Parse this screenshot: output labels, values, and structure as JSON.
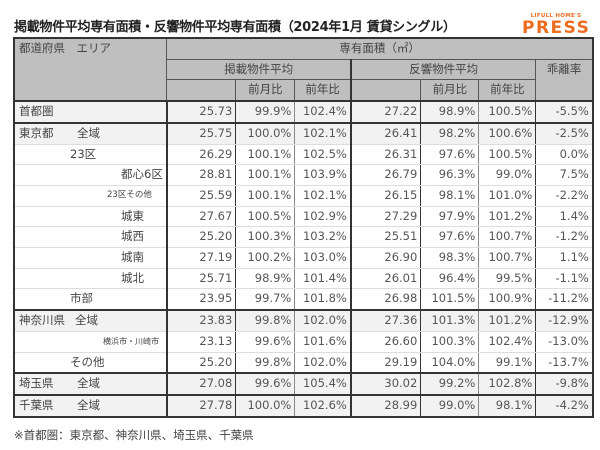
{
  "title": "掲載物件平均専有面積・反響物件平均専有面積（2024年1月 賃貸シングル）",
  "logo": {
    "small": "LIFULL HOME'S",
    "big": "PRESS",
    "color": "#ec6d20"
  },
  "header": {
    "area": "都道府県　エリア",
    "group": "専有面積（㎡）",
    "listed": "掲載物件平均",
    "response": "反響物件平均",
    "divergence": "乖離率",
    "mom": "前月比",
    "yoy": "前年比"
  },
  "rows": [
    {
      "pref": "首都圏",
      "area": "",
      "listed": "25.73",
      "l_mom": "99.9%",
      "l_yoy": "102.4%",
      "resp": "27.22",
      "r_mom": "98.9%",
      "r_yoy": "100.5%",
      "div": "-5.5%"
    },
    {
      "pref": "東京都",
      "area": "全域",
      "listed": "25.75",
      "l_mom": "100.0%",
      "l_yoy": "102.1%",
      "resp": "26.41",
      "r_mom": "98.2%",
      "r_yoy": "100.6%",
      "div": "-2.5%"
    },
    {
      "pref": "",
      "area": "23区",
      "listed": "26.29",
      "l_mom": "100.1%",
      "l_yoy": "102.5%",
      "resp": "26.31",
      "r_mom": "97.6%",
      "r_yoy": "100.5%",
      "div": "0.0%"
    },
    {
      "pref": "",
      "area": "都心6区",
      "listed": "28.81",
      "l_mom": "100.1%",
      "l_yoy": "103.9%",
      "resp": "26.79",
      "r_mom": "96.3%",
      "r_yoy": "99.0%",
      "div": "7.5%"
    },
    {
      "pref": "",
      "area": "23区その他",
      "listed": "25.59",
      "l_mom": "100.1%",
      "l_yoy": "102.1%",
      "resp": "26.15",
      "r_mom": "98.1%",
      "r_yoy": "101.0%",
      "div": "-2.2%"
    },
    {
      "pref": "",
      "area": "城東",
      "listed": "27.67",
      "l_mom": "100.5%",
      "l_yoy": "102.9%",
      "resp": "27.29",
      "r_mom": "97.9%",
      "r_yoy": "101.2%",
      "div": "1.4%"
    },
    {
      "pref": "",
      "area": "城西",
      "listed": "25.20",
      "l_mom": "100.3%",
      "l_yoy": "103.2%",
      "resp": "25.51",
      "r_mom": "97.6%",
      "r_yoy": "100.7%",
      "div": "-1.2%"
    },
    {
      "pref": "",
      "area": "城南",
      "listed": "27.19",
      "l_mom": "100.2%",
      "l_yoy": "103.0%",
      "resp": "26.90",
      "r_mom": "98.3%",
      "r_yoy": "100.7%",
      "div": "1.1%"
    },
    {
      "pref": "",
      "area": "城北",
      "listed": "25.71",
      "l_mom": "98.9%",
      "l_yoy": "101.4%",
      "resp": "26.01",
      "r_mom": "96.4%",
      "r_yoy": "99.5%",
      "div": "-1.1%"
    },
    {
      "pref": "",
      "area": "市部",
      "listed": "23.95",
      "l_mom": "99.7%",
      "l_yoy": "101.8%",
      "resp": "26.98",
      "r_mom": "101.5%",
      "r_yoy": "100.9%",
      "div": "-11.2%"
    },
    {
      "pref": "神奈川県",
      "area": "全域",
      "listed": "23.83",
      "l_mom": "99.8%",
      "l_yoy": "102.0%",
      "resp": "27.36",
      "r_mom": "101.3%",
      "r_yoy": "101.2%",
      "div": "-12.9%"
    },
    {
      "pref": "",
      "area": "横浜市・川崎市",
      "listed": "23.13",
      "l_mom": "99.6%",
      "l_yoy": "101.6%",
      "resp": "26.60",
      "r_mom": "100.3%",
      "r_yoy": "102.4%",
      "div": "-13.0%"
    },
    {
      "pref": "",
      "area": "その他",
      "listed": "25.20",
      "l_mom": "99.8%",
      "l_yoy": "102.0%",
      "resp": "29.19",
      "r_mom": "104.0%",
      "r_yoy": "99.1%",
      "div": "-13.7%"
    },
    {
      "pref": "埼玉県",
      "area": "全域",
      "listed": "27.08",
      "l_mom": "99.6%",
      "l_yoy": "105.4%",
      "resp": "30.02",
      "r_mom": "99.2%",
      "r_yoy": "102.8%",
      "div": "-9.8%"
    },
    {
      "pref": "千葉県",
      "area": "全域",
      "listed": "27.78",
      "l_mom": "100.0%",
      "l_yoy": "102.6%",
      "resp": "28.99",
      "r_mom": "99.0%",
      "r_yoy": "98.1%",
      "div": "-4.2%"
    }
  ],
  "footnote": "※首都圏：東京都、神奈川県、埼玉県、千葉県"
}
